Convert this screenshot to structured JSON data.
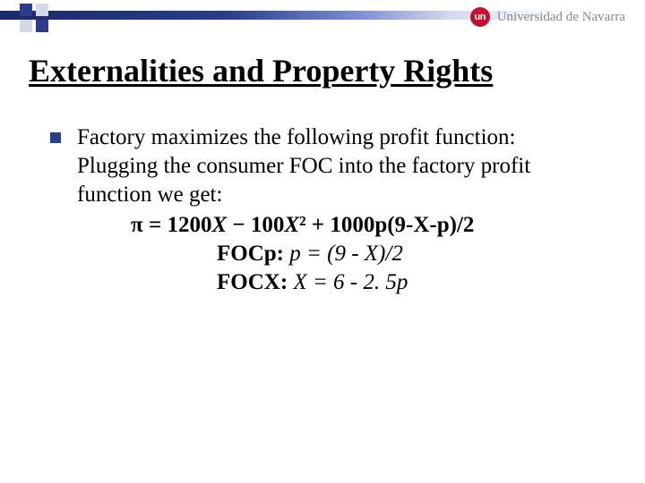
{
  "header": {
    "logo_initials": "un",
    "logo_text": "Universidad de Navarra",
    "stripe_gradient_from": "#1c2a6b",
    "stripe_gradient_to": "#ffffff",
    "square_dark": "#2a3c8a",
    "square_light": "#d5d9ec",
    "logo_badge_color": "#c8102e"
  },
  "title": "Externalities and Property Rights",
  "content": {
    "line1": "Factory maximizes the following profit function:",
    "line2": "Plugging the consumer FOC into the factory profit function we get:",
    "eq_main_prefix": "π = 1200",
    "eq_main_x1": "X",
    "eq_main_mid1": " − 100",
    "eq_main_x2": "X",
    "eq_main_sq": "²",
    "eq_main_mid2": " + 1000p(9-X-p)/2",
    "foc_p_label": "FOCp:",
    "foc_p_expr_lhs": " p",
    "foc_p_expr_rhs": " = (9 - X)/2",
    "foc_x_label": "FOCX:",
    "foc_x_expr_lhs": " X",
    "foc_x_expr_rhs": " = 6 - 2. 5p"
  },
  "style": {
    "title_fontsize": 36,
    "body_fontsize": 25,
    "text_color": "#000000",
    "background": "#ffffff"
  }
}
